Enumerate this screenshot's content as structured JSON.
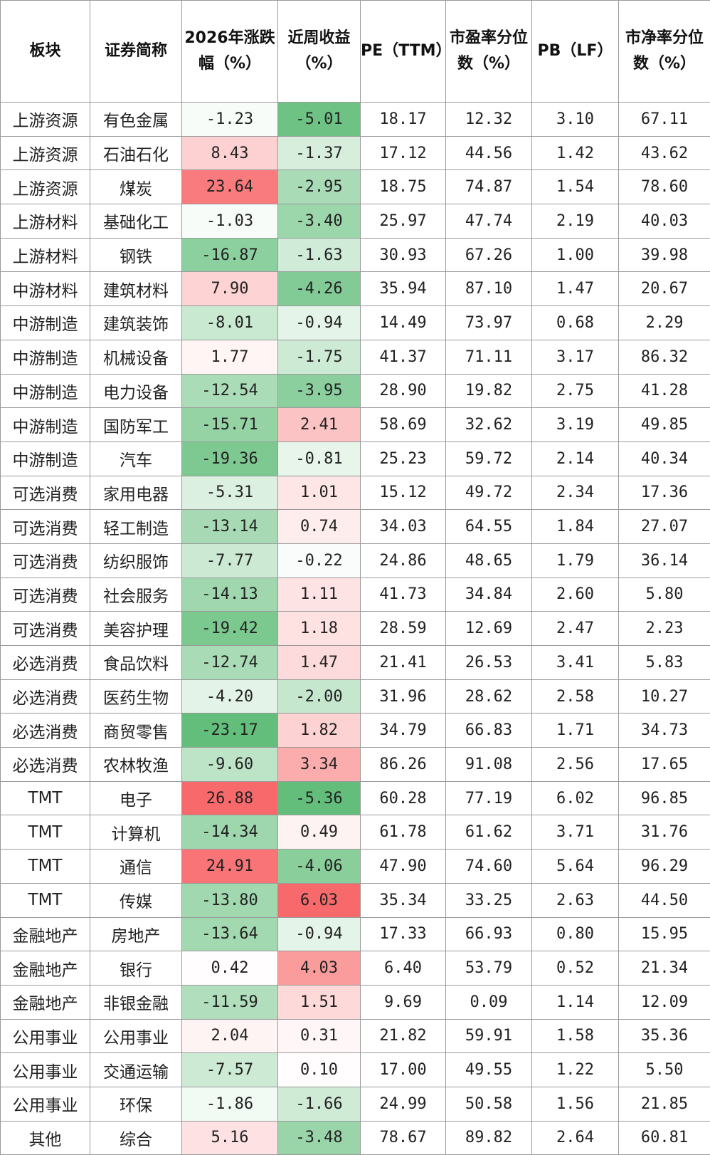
{
  "table": {
    "header": [
      "板块",
      "证券简称",
      "2026年涨跌幅（%）",
      "近周收益（%）",
      "PE（TTM）",
      "市盈率分位数（%）",
      "PB（LF）",
      "市净率分位数（%）"
    ],
    "rows": [
      [
        "上游资源",
        "有色金属",
        "-1.23",
        "-5.01",
        "18.17",
        "12.32",
        "3.10",
        "67.11"
      ],
      [
        "上游资源",
        "石油石化",
        "8.43",
        "-1.37",
        "17.12",
        "44.56",
        "1.42",
        "43.62"
      ],
      [
        "上游资源",
        "煤炭",
        "23.64",
        "-2.95",
        "18.75",
        "74.87",
        "1.54",
        "78.60"
      ],
      [
        "上游材料",
        "基础化工",
        "-1.03",
        "-3.40",
        "25.97",
        "47.74",
        "2.19",
        "40.03"
      ],
      [
        "上游材料",
        "钢铁",
        "-16.87",
        "-1.63",
        "30.93",
        "67.26",
        "1.00",
        "39.98"
      ],
      [
        "中游材料",
        "建筑材料",
        "7.90",
        "-4.26",
        "35.94",
        "87.10",
        "1.47",
        "20.67"
      ],
      [
        "中游制造",
        "建筑装饰",
        "-8.01",
        "-0.94",
        "14.49",
        "73.97",
        "0.68",
        "2.29"
      ],
      [
        "中游制造",
        "机械设备",
        "1.77",
        "-1.75",
        "41.37",
        "71.11",
        "3.17",
        "86.32"
      ],
      [
        "中游制造",
        "电力设备",
        "-12.54",
        "-3.95",
        "28.90",
        "19.82",
        "2.75",
        "41.28"
      ],
      [
        "中游制造",
        "国防军工",
        "-15.71",
        "2.41",
        "58.69",
        "32.62",
        "3.19",
        "49.85"
      ],
      [
        "中游制造",
        "汽车",
        "-19.36",
        "-0.81",
        "25.23",
        "59.72",
        "2.14",
        "40.34"
      ],
      [
        "可选消费",
        "家用电器",
        "-5.31",
        "1.01",
        "15.12",
        "49.72",
        "2.34",
        "17.36"
      ],
      [
        "可选消费",
        "轻工制造",
        "-13.14",
        "0.74",
        "34.03",
        "64.55",
        "1.84",
        "27.07"
      ],
      [
        "可选消费",
        "纺织服饰",
        "-7.77",
        "-0.22",
        "24.86",
        "48.65",
        "1.79",
        "36.14"
      ],
      [
        "可选消费",
        "社会服务",
        "-14.13",
        "1.11",
        "41.73",
        "34.84",
        "2.60",
        "5.80"
      ],
      [
        "可选消费",
        "美容护理",
        "-19.42",
        "1.18",
        "28.59",
        "12.69",
        "2.47",
        "2.23"
      ],
      [
        "必选消费",
        "食品饮料",
        "-12.74",
        "1.47",
        "21.41",
        "26.53",
        "3.41",
        "5.83"
      ],
      [
        "必选消费",
        "医药生物",
        "-4.20",
        "-2.00",
        "31.96",
        "28.62",
        "2.58",
        "10.27"
      ],
      [
        "必选消费",
        "商贸零售",
        "-23.17",
        "1.82",
        "34.79",
        "66.83",
        "1.71",
        "34.73"
      ],
      [
        "必选消费",
        "农林牧渔",
        "-9.60",
        "3.34",
        "86.26",
        "91.08",
        "2.56",
        "17.65"
      ],
      [
        "TMT",
        "电子",
        "26.88",
        "-5.36",
        "60.28",
        "77.19",
        "6.02",
        "96.85"
      ],
      [
        "TMT",
        "计算机",
        "-14.34",
        "0.49",
        "61.78",
        "61.62",
        "3.71",
        "31.76"
      ],
      [
        "TMT",
        "通信",
        "24.91",
        "-4.06",
        "47.90",
        "74.60",
        "5.64",
        "96.29"
      ],
      [
        "TMT",
        "传媒",
        "-13.80",
        "6.03",
        "35.34",
        "33.25",
        "2.63",
        "44.50"
      ],
      [
        "金融地产",
        "房地产",
        "-13.64",
        "-0.94",
        "17.33",
        "66.93",
        "0.80",
        "15.95"
      ],
      [
        "金融地产",
        "银行",
        "0.42",
        "4.03",
        "6.40",
        "53.79",
        "0.52",
        "21.34"
      ],
      [
        "金融地产",
        "非银金融",
        "-11.59",
        "1.51",
        "9.69",
        "0.09",
        "1.14",
        "12.09"
      ],
      [
        "公用事业",
        "公用事业",
        "2.04",
        "0.31",
        "21.82",
        "59.91",
        "1.58",
        "35.36"
      ],
      [
        "公用事业",
        "交通运输",
        "-7.57",
        "0.10",
        "17.00",
        "49.55",
        "1.22",
        "5.50"
      ],
      [
        "公用事业",
        "环保",
        "-1.86",
        "-1.66",
        "24.99",
        "50.58",
        "1.56",
        "21.85"
      ],
      [
        "其他",
        "综合",
        "5.16",
        "-3.48",
        "78.67",
        "89.82",
        "2.64",
        "60.81"
      ]
    ]
  }
}
